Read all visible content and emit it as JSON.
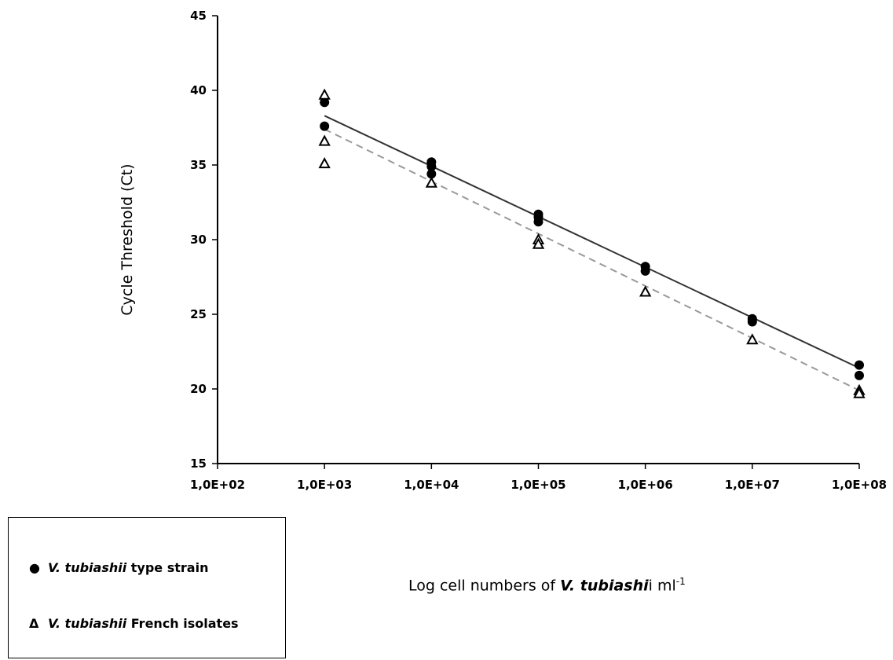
{
  "chart_data": {
    "type": "scatter",
    "x_scale": "log10",
    "x_ticks": [
      100,
      1000,
      10000,
      100000,
      1000000,
      10000000,
      100000000
    ],
    "x_tick_labels": [
      "1,0E+02",
      "1,0E+03",
      "1,0E+04",
      "1,0E+05",
      "1,0E+06",
      "1,0E+07",
      "1,0E+08"
    ],
    "ylim": [
      15,
      45
    ],
    "y_ticks": [
      15,
      20,
      25,
      30,
      35,
      40,
      45
    ],
    "ylabel": "Cycle Threshold  (Ct)",
    "xlabel": {
      "prefix": "Log cell numbers of ",
      "italic": "V. tubiashi",
      "suffix": "i  ml",
      "superscript": "-1"
    },
    "series": [
      {
        "name": "V. tubiashii type strain",
        "marker": "filled-circle",
        "color": "#000000",
        "points": [
          [
            1000,
            39.2
          ],
          [
            1000,
            37.6
          ],
          [
            10000,
            35.2
          ],
          [
            10000,
            34.9
          ],
          [
            10000,
            34.4
          ],
          [
            100000,
            31.7
          ],
          [
            100000,
            31.5
          ],
          [
            100000,
            31.2
          ],
          [
            1000000,
            28.2
          ],
          [
            1000000,
            27.9
          ],
          [
            10000000,
            24.7
          ],
          [
            10000000,
            24.5
          ],
          [
            100000000,
            21.6
          ],
          [
            100000000,
            20.9
          ]
        ],
        "trendline": {
          "style": "solid",
          "color": "#333333",
          "from": [
            1000,
            38.3
          ],
          "to": [
            100000000,
            21.4
          ]
        }
      },
      {
        "name": "V. tubiashii French isolates",
        "marker": "open-triangle",
        "color": "#000000",
        "points": [
          [
            1000,
            39.7
          ],
          [
            1000,
            36.6
          ],
          [
            1000,
            35.1
          ],
          [
            10000,
            33.8
          ],
          [
            100000,
            30.0
          ],
          [
            100000,
            29.7
          ],
          [
            1000000,
            26.5
          ],
          [
            10000000,
            23.3
          ],
          [
            100000000,
            19.9
          ],
          [
            100000000,
            19.7
          ]
        ],
        "trendline": {
          "style": "dashed",
          "color": "#999999",
          "from": [
            1000,
            37.4
          ],
          "to": [
            100000000,
            19.9
          ]
        }
      }
    ],
    "legend": {
      "position": "bottom-left",
      "items": [
        {
          "symbol": "●",
          "italic": "V. tubiashii",
          "text": " type strain"
        },
        {
          "symbol": "Δ",
          "italic": "V. tubiashii",
          "text": " French isolates"
        }
      ]
    }
  }
}
